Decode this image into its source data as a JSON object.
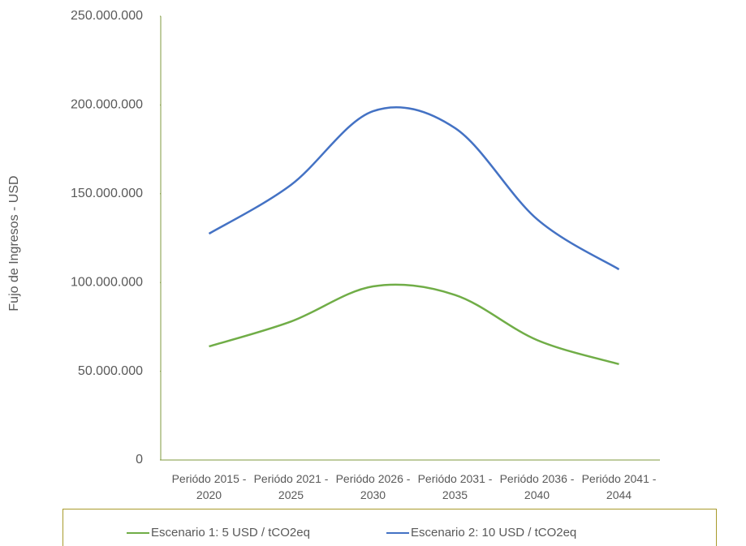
{
  "chart_data": {
    "type": "line",
    "y_label": "Fujo de Ingresos - USD",
    "categories": [
      "Periódo 2015 - 2020",
      "Periódo 2021 - 2025",
      "Periódo 2026 - 2030",
      "Periódo 2031 - 2035",
      "Periódo 2036 - 2040",
      "Periódo 2041 - 2044"
    ],
    "series": [
      {
        "name": "Escenario 1: 5 USD / tCO2eq",
        "color": "#70ad47",
        "values": [
          64000000,
          78000000,
          97800000,
          93000000,
          67600000,
          54000000
        ]
      },
      {
        "name": "Escenario 2: 10 USD / tCO2eq",
        "color": "#4472c4",
        "values": [
          127500000,
          155000000,
          196500000,
          187000000,
          135700000,
          107400000
        ]
      }
    ],
    "ylim": [
      0,
      250000000
    ],
    "yticks": [
      0,
      {
        "value": 50000000,
        "label": "50.000.000"
      },
      {
        "value": 100000000,
        "label": "100.000.000"
      },
      {
        "value": 150000000,
        "label": "150.000.000"
      },
      {
        "value": 200000000,
        "label": "200.000.000"
      },
      {
        "value": 250000000,
        "label": "250.000.000"
      }
    ],
    "grid": false,
    "smooth": true
  }
}
